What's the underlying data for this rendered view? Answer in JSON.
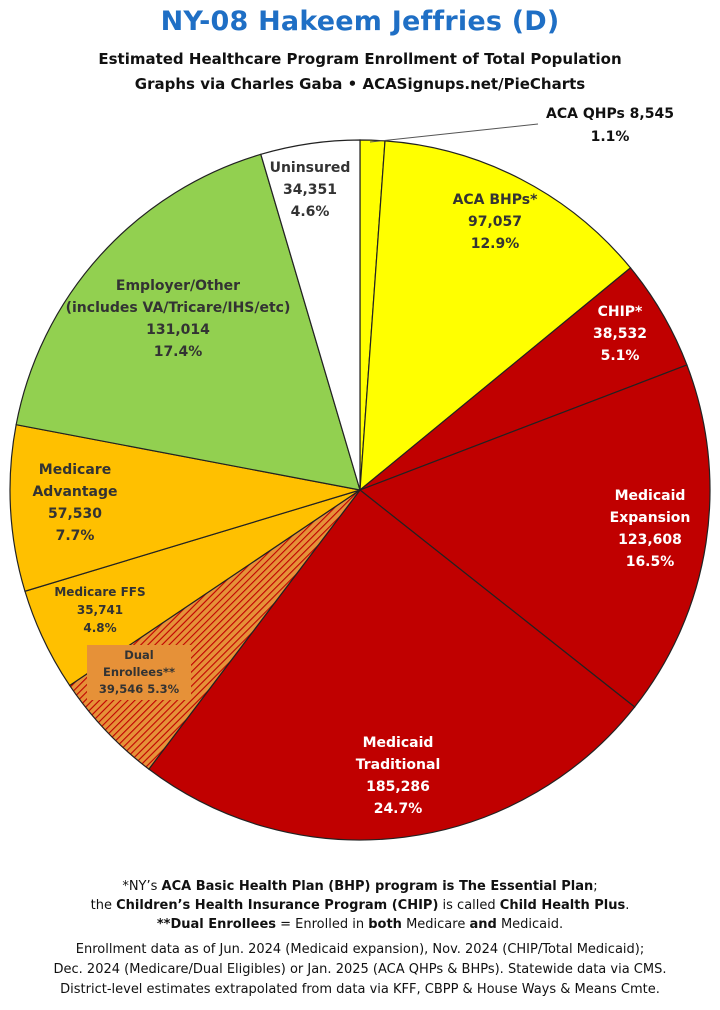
{
  "title": "NY-08 Hakeem Jeffries (D)",
  "subtitle_line1": "Estimated Healthcare Program Enrollment of Total Population",
  "subtitle_line2": "Graphs via Charles Gaba   •   ACASignups.net/PieCharts",
  "chart_data": {
    "type": "pie",
    "slices": [
      {
        "name": "ACA QHPs",
        "value": 8545,
        "percent": "1.1%",
        "color": "#ffff00",
        "label_lines": [
          "ACA QHPs 8,545",
          "1.1%"
        ]
      },
      {
        "name": "ACA BHPs*",
        "value": 97057,
        "percent": "12.9%",
        "color": "#ffff00",
        "label_lines": [
          "ACA BHPs*",
          "97,057",
          "12.9%"
        ]
      },
      {
        "name": "CHIP*",
        "value": 38532,
        "percent": "5.1%",
        "color": "#c00000",
        "label_lines": [
          "CHIP*",
          "38,532",
          "5.1%"
        ]
      },
      {
        "name": "Medicaid Expansion",
        "value": 123608,
        "percent": "16.5%",
        "color": "#c00000",
        "label_lines": [
          "Medicaid",
          "Expansion",
          "123,608",
          "16.5%"
        ]
      },
      {
        "name": "Medicaid Traditional",
        "value": 185286,
        "percent": "24.7%",
        "color": "#c00000",
        "label_lines": [
          "Medicaid",
          "Traditional",
          "185,286",
          "24.7%"
        ]
      },
      {
        "name": "Dual Enrollees**",
        "value": 39546,
        "percent": "5.3%",
        "color": "#e69138",
        "hatch": true,
        "label_lines": [
          "Dual",
          "Enrollees**",
          "39,546 5.3%"
        ]
      },
      {
        "name": "Medicare FFS",
        "value": 35741,
        "percent": "4.8%",
        "color": "#ffc000",
        "label_lines": [
          "Medicare FFS",
          "35,741",
          "4.8%"
        ]
      },
      {
        "name": "Medicare Advantage",
        "value": 57530,
        "percent": "7.7%",
        "color": "#ffc000",
        "label_lines": [
          "Medicare",
          "Advantage",
          "57,530",
          "7.7%"
        ]
      },
      {
        "name": "Employer/Other",
        "value": 131014,
        "percent": "17.4%",
        "color": "#92d050",
        "label_lines": [
          "Employer/Other",
          "(includes VA/Tricare/IHS/etc)",
          "131,014",
          "17.4%"
        ]
      },
      {
        "name": "Uninsured",
        "value": 34351,
        "percent": "4.6%",
        "color": "#ffffff",
        "label_lines": [
          "Uninsured",
          "34,351",
          "4.6%"
        ]
      }
    ]
  },
  "footnotes": {
    "line1_pre": "*NY’s ",
    "line1_bold": "ACA Basic Health Plan (BHP) program is The Essential Plan",
    "line1_post": ";",
    "line2_pre": "the ",
    "line2_bold1": "Children’s Health Insurance Program (CHIP)",
    "line2_mid": " is called ",
    "line2_bold2": "Child Health Plus",
    "line2_post": ".",
    "line3_bold1": "**Dual Enrollees",
    "line3_mid1": " = Enrolled in ",
    "line3_bold2": "both",
    "line3_mid2": " Medicare ",
    "line3_bold3": "and",
    "line3_post": " Medicaid."
  },
  "sources": {
    "line1": "Enrollment data as of Jun. 2024 (Medicaid expansion), Nov. 2024 (CHIP/Total Medicaid);",
    "line2": "Dec. 2024 (Medicare/Dual Eligibles) or Jan. 2025 (ACA QHPs & BHPs). Statewide data via CMS.",
    "line3": "District-level estimates extrapolated from data via KFF, CBPP & House Ways & Means Cmte."
  }
}
